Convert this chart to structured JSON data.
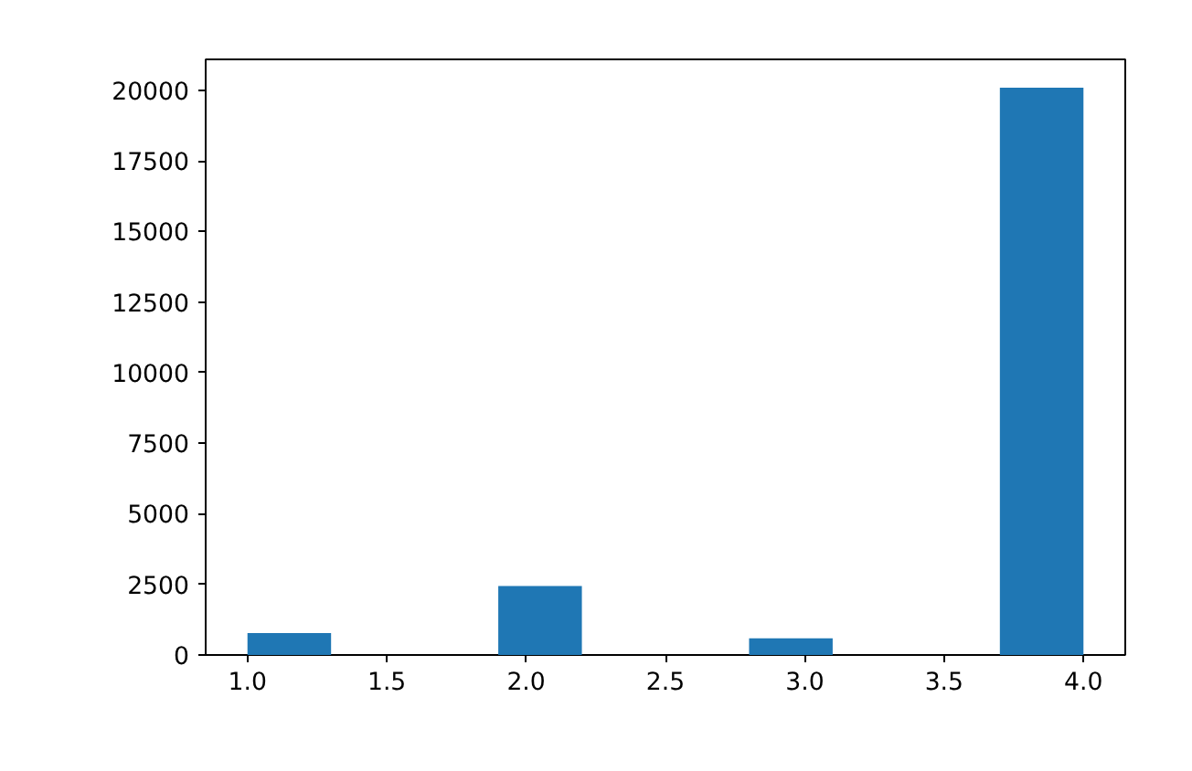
{
  "chart_data": {
    "type": "histogram",
    "bins": [
      1.0,
      1.3,
      1.6,
      1.9,
      2.2,
      2.5,
      2.8,
      3.1,
      3.4,
      3.7,
      4.0
    ],
    "values": [
      780,
      0,
      0,
      2440,
      0,
      0,
      590,
      0,
      0,
      20100
    ],
    "color": "#1f77b4",
    "xlim": [
      0.85,
      4.15
    ],
    "xticks": [
      {
        "value": 1.0,
        "label": "1.0"
      },
      {
        "value": 1.5,
        "label": "1.5"
      },
      {
        "value": 2.0,
        "label": "2.0"
      },
      {
        "value": 2.5,
        "label": "2.5"
      },
      {
        "value": 3.0,
        "label": "3.0"
      },
      {
        "value": 3.5,
        "label": "3.5"
      },
      {
        "value": 4.0,
        "label": "4.0"
      }
    ],
    "ylim": [
      0,
      21100
    ],
    "yticks": [
      0,
      2500,
      5000,
      7500,
      10000,
      12500,
      15000,
      17500,
      20000
    ],
    "grid": false
  }
}
